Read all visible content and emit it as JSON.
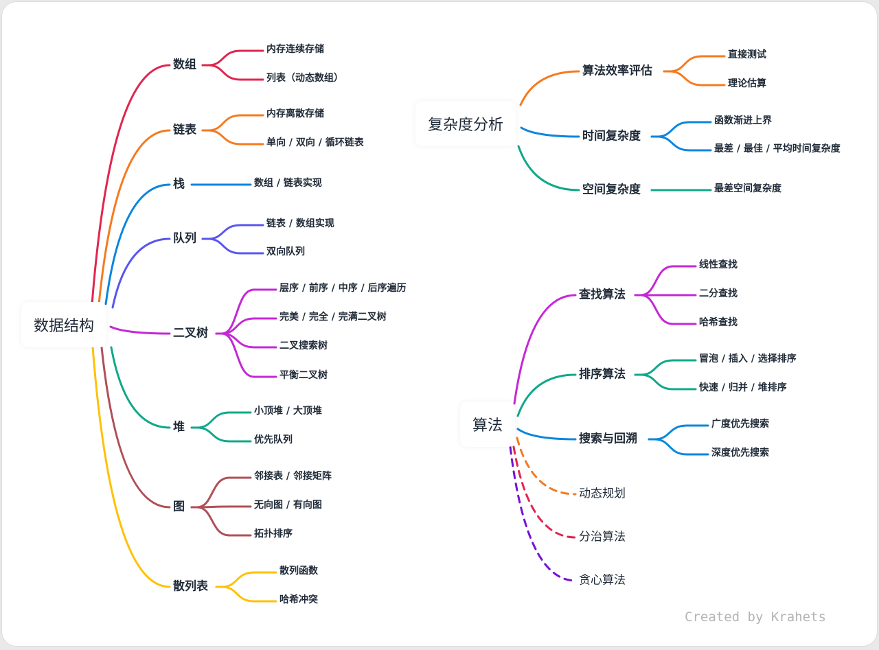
{
  "colors": {
    "red": "#e0264f",
    "orange": "#f57a1f",
    "blue": "#0a86dd",
    "indigo": "#5856f0",
    "magenta": "#c428d6",
    "teal": "#10a88a",
    "brown": "#b04f57",
    "yellow": "#ffc107",
    "purple": "#7411d4"
  },
  "mindmaps": [
    {
      "root": "数据结构",
      "branches": [
        {
          "label": "数组",
          "color": "red",
          "children": [
            "内存连续存储",
            "列表（动态数组）"
          ]
        },
        {
          "label": "链表",
          "color": "orange",
          "children": [
            "内存离散存储",
            "单向 / 双向 / 循环链表"
          ]
        },
        {
          "label": "栈",
          "color": "blue",
          "children": [
            "数组 / 链表实现"
          ]
        },
        {
          "label": "队列",
          "color": "indigo",
          "children": [
            "链表 / 数组实现",
            "双向队列"
          ]
        },
        {
          "label": "二叉树",
          "color": "magenta",
          "children": [
            "层序 / 前序 / 中序 / 后序遍历",
            "完美 / 完全 / 完满二叉树",
            "二叉搜索树",
            "平衡二叉树"
          ]
        },
        {
          "label": "堆",
          "color": "teal",
          "children": [
            "小顶堆 / 大顶堆",
            "优先队列"
          ]
        },
        {
          "label": "图",
          "color": "brown",
          "children": [
            "邻接表 / 邻接矩阵",
            "无向图 / 有向图",
            "拓扑排序"
          ]
        },
        {
          "label": "散列表",
          "color": "yellow",
          "children": [
            "散列函数",
            "哈希冲突"
          ]
        }
      ]
    },
    {
      "root": "复杂度分析",
      "branches": [
        {
          "label": "算法效率评估",
          "color": "orange",
          "children": [
            "直接测试",
            "理论估算"
          ]
        },
        {
          "label": "时间复杂度",
          "color": "blue",
          "children": [
            "函数渐进上界",
            "最差 / 最佳 / 平均时间复杂度"
          ]
        },
        {
          "label": "空间复杂度",
          "color": "teal",
          "children": [
            "最差空间复杂度"
          ]
        }
      ]
    },
    {
      "root": "算法",
      "branches": [
        {
          "label": "查找算法",
          "color": "magenta",
          "children": [
            "线性查找",
            "二分查找",
            "哈希查找"
          ]
        },
        {
          "label": "排序算法",
          "color": "teal",
          "children": [
            "冒泡 / 插入 / 选择排序",
            "快速 / 归并 / 堆排序"
          ]
        },
        {
          "label": "搜索与回溯",
          "color": "blue",
          "children": [
            "广度优先搜索",
            "深度优先搜索"
          ]
        },
        {
          "label": "动态规划",
          "color": "orange",
          "dashed": true,
          "children": []
        },
        {
          "label": "分治算法",
          "color": "red",
          "dashed": true,
          "children": []
        },
        {
          "label": "贪心算法",
          "color": "purple",
          "dashed": true,
          "children": []
        }
      ]
    }
  ],
  "watermark": "Created by Krahets"
}
